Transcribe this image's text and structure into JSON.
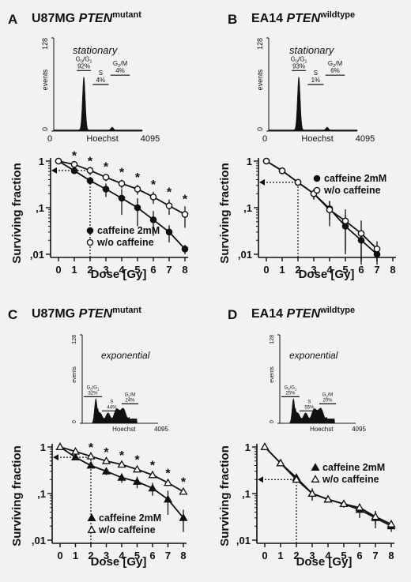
{
  "panels": [
    {
      "letter": "A",
      "title_main": "U87MG ",
      "title_gene": "PTEN",
      "title_sup": "mutant",
      "histogram": {
        "condition": "stationary",
        "ylabel": "events",
        "ymax_label": "128",
        "ymin_label": "0",
        "x_min_label": "0",
        "x_mid_label": "Hoechst",
        "x_max_label": "4095",
        "phases": [
          {
            "name": "G",
            "sub1": "0",
            "sep": "/G",
            "sub2": "1",
            "pct": "92%"
          },
          {
            "name": "S",
            "pct": "4%"
          },
          {
            "name": "G",
            "sub1": "2",
            "sep": "/M",
            "pct": "4%"
          }
        ],
        "profile": "stationary"
      },
      "survival": {
        "type": "line",
        "xlabel": "Dose [Gy]",
        "ylabel": "Surviving fraction",
        "x_ticks": [
          "0",
          "1",
          "2",
          "3",
          "4",
          "5",
          "6",
          "7",
          "8"
        ],
        "y_ticks": [
          {
            "v": 1,
            "label": "1"
          },
          {
            "v": 0.1,
            "label": ",1"
          },
          {
            "v": 0.01,
            "label": ",01"
          }
        ],
        "ylim": [
          0.01,
          1
        ],
        "y_scale": "log",
        "legend_position": "bottom-left",
        "series": [
          {
            "name": "caffeine 2mM",
            "marker": "filled-circle",
            "x": [
              0,
              1,
              2,
              3,
              4,
              5,
              6,
              7,
              8
            ],
            "y": [
              1,
              0.62,
              0.38,
              0.25,
              0.16,
              0.1,
              0.055,
              0.03,
              0.013
            ],
            "err": [
              0.05,
              0.05,
              0.06,
              0.08,
              0.09,
              0.06,
              0.03,
              0.012,
              0.003
            ]
          },
          {
            "name": "w/o caffeine",
            "marker": "open-circle",
            "x": [
              0,
              1,
              2,
              3,
              4,
              5,
              6,
              7,
              8
            ],
            "y": [
              1,
              0.85,
              0.63,
              0.45,
              0.33,
              0.25,
              0.17,
              0.11,
              0.072
            ],
            "err": [
              0.05,
              0.05,
              0.06,
              0.08,
              0.07,
              0.06,
              0.05,
              0.04,
              0.035
            ]
          }
        ],
        "significance": {
          "symbol": "*",
          "x": [
            1,
            2,
            3,
            4,
            5,
            6,
            7,
            8
          ]
        },
        "d37_dose": 2,
        "d37_level": 0.63
      }
    },
    {
      "letter": "B",
      "title_main": "EA14 ",
      "title_gene": "PTEN",
      "title_sup": "wildtype",
      "histogram": {
        "condition": "stationary",
        "ylabel": "events",
        "ymax_label": "128",
        "ymin_label": "0",
        "x_min_label": "0",
        "x_mid_label": "Hoechst",
        "x_max_label": "4095",
        "phases": [
          {
            "name": "G",
            "sub1": "0",
            "sep": "/G",
            "sub2": "1",
            "pct": "93%"
          },
          {
            "name": "S",
            "pct": "1%"
          },
          {
            "name": "G",
            "sub1": "2",
            "sep": "/M",
            "pct": "6%"
          }
        ],
        "profile": "stationary"
      },
      "survival": {
        "type": "line",
        "xlabel": "Dose [Gy]",
        "ylabel": "Surviving fraction",
        "x_ticks": [
          "0",
          "1",
          "2",
          "3",
          "4",
          "5",
          "6",
          "7",
          "8"
        ],
        "y_ticks": [
          {
            "v": 1,
            "label": "1"
          },
          {
            "v": 0.1,
            "label": ",1"
          },
          {
            "v": 0.01,
            "label": ",01"
          }
        ],
        "ylim": [
          0.01,
          1
        ],
        "y_scale": "log",
        "legend_position": "top-right",
        "series": [
          {
            "name": "caffeine 2mM",
            "marker": "filled-circle",
            "x": [
              0,
              1,
              2,
              3,
              4,
              5,
              6,
              7
            ],
            "y": [
              1,
              0.62,
              0.35,
              0.2,
              0.095,
              0.04,
              0.02,
              0.01
            ],
            "err": [
              0.05,
              0.04,
              0.04,
              0.05,
              0.04,
              0.03,
              0.012,
              0.006
            ]
          },
          {
            "name": "w/o caffeine",
            "marker": "open-circle",
            "x": [
              0,
              1,
              2,
              3,
              4,
              5,
              6,
              7
            ],
            "y": [
              1,
              0.62,
              0.35,
              0.2,
              0.09,
              0.052,
              0.028,
              0.013
            ],
            "err": [
              0.05,
              0.04,
              0.04,
              0.05,
              0.05,
              0.04,
              0.025,
              0.006
            ]
          }
        ],
        "d37_dose": 2,
        "d37_level": 0.35
      }
    },
    {
      "letter": "C",
      "title_main": "U87MG ",
      "title_gene": "PTEN",
      "title_sup": "mutant",
      "histogram": {
        "condition": "exponential",
        "ylabel": "events",
        "ymax_label": "128",
        "ymin_label": "0",
        "x_min_label": "",
        "x_mid_label": "Hoechst",
        "x_max_label": "4095",
        "phases": [
          {
            "name": "G",
            "sub1": "0",
            "sep": "/G",
            "sub2": "1",
            "pct": "32%"
          },
          {
            "name": "S",
            "pct": "44%"
          },
          {
            "name": "G",
            "sub1": "2",
            "sep": "/M",
            "pct": "24%"
          }
        ],
        "profile": "exponential"
      },
      "survival": {
        "type": "line",
        "xlabel": "Dose [Gy]",
        "ylabel": "Surviving fraction",
        "x_ticks": [
          "0",
          "1",
          "2",
          "3",
          "4",
          "5",
          "6",
          "7",
          "8"
        ],
        "y_ticks": [
          {
            "v": 1,
            "label": "1"
          },
          {
            "v": 0.1,
            "label": ",1"
          },
          {
            "v": 0.01,
            "label": ",01"
          }
        ],
        "ylim": [
          0.01,
          1
        ],
        "y_scale": "log",
        "legend_position": "bottom-right",
        "series": [
          {
            "name": "caffeine 2mM",
            "marker": "filled-triangle",
            "x": [
              0,
              1,
              2,
              3,
              4,
              5,
              6,
              7,
              8
            ],
            "y": [
              1,
              0.6,
              0.4,
              0.3,
              0.22,
              0.18,
              0.13,
              0.075,
              0.03
            ],
            "err": [
              0.05,
              0.05,
              0.05,
              0.05,
              0.05,
              0.05,
              0.04,
              0.04,
              0.015
            ]
          },
          {
            "name": "w/o caffeine",
            "marker": "open-triangle",
            "x": [
              0,
              1,
              2,
              3,
              4,
              5,
              6,
              7,
              8
            ],
            "y": [
              1,
              0.8,
              0.63,
              0.5,
              0.42,
              0.33,
              0.25,
              0.17,
              0.11
            ],
            "err": [
              0.04,
              0.04,
              0.05,
              0.04,
              0.04,
              0.04,
              0.03,
              0.02,
              0.015
            ]
          }
        ],
        "significance": {
          "symbol": "*",
          "x": [
            2,
            3,
            4,
            5,
            6,
            7,
            8
          ]
        },
        "d37_dose": 2,
        "d37_level": 0.6
      }
    },
    {
      "letter": "D",
      "title_main": "EA14 ",
      "title_gene": "PTEN",
      "title_sup": "wildtype",
      "histogram": {
        "condition": "exponential",
        "ylabel": "events",
        "ymax_label": "128",
        "ymin_label": "0",
        "x_min_label": "",
        "x_mid_label": "Hoechst",
        "x_max_label": "4095",
        "phases": [
          {
            "name": "G",
            "sub1": "0",
            "sep": "/G",
            "sub2": "1",
            "pct": "25%"
          },
          {
            "name": "S",
            "pct": "55%"
          },
          {
            "name": "G",
            "sub1": "2",
            "sep": "/M",
            "pct": "20%"
          }
        ],
        "profile": "exponential"
      },
      "survival": {
        "type": "line",
        "xlabel": "Dose [Gy]",
        "ylabel": "Surviving fraction",
        "x_ticks": [
          "0",
          "1",
          "2",
          "3",
          "4",
          "5",
          "6",
          "7",
          "8"
        ],
        "y_ticks": [
          {
            "v": 1,
            "label": "1"
          },
          {
            "v": 0.1,
            "label": ",1"
          },
          {
            "v": 0.01,
            "label": ",01"
          }
        ],
        "ylim": [
          0.01,
          1
        ],
        "y_scale": "log",
        "legend_position": "top-right",
        "series": [
          {
            "name": "caffeine 2mM",
            "marker": "filled-triangle",
            "x": [
              0,
              1,
              2,
              3,
              4,
              5,
              6,
              7,
              8
            ],
            "y": [
              1,
              0.45,
              0.22,
              0.1,
              0.075,
              0.06,
              0.045,
              0.03,
              0.02
            ],
            "err": [
              0.04,
              0.03,
              0.03,
              0.03,
              0.01,
              0.01,
              0.015,
              0.012,
              0.005
            ]
          },
          {
            "name": "w/o caffeine",
            "marker": "open-triangle",
            "x": [
              0,
              1,
              2,
              3,
              4,
              5,
              6,
              7,
              8
            ],
            "y": [
              1,
              0.45,
              0.2,
              0.1,
              0.075,
              0.06,
              0.05,
              0.032,
              0.022
            ],
            "err": [
              0.04,
              0.03,
              0.03,
              0.02,
              0.01,
              0.01,
              0.01,
              0.01,
              0.005
            ]
          }
        ],
        "d37_dose": 2,
        "d37_level": 0.2
      }
    }
  ]
}
